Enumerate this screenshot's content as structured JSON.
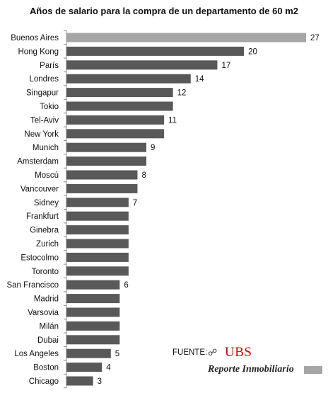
{
  "chart_data": {
    "type": "bar",
    "orientation": "horizontal",
    "title": "Años de salario para la compra de un departamento de 60 m2",
    "categories": [
      "Buenos Aires",
      "Hong Kong",
      "París",
      "Londres",
      "Singapur",
      "Tokio",
      "Tel-Aviv",
      "New York",
      "Munich",
      "Amsterdam",
      "Moscú",
      "Vancouver",
      "Sidney",
      "Frankfurt",
      "Ginebra",
      "Zurich",
      "Estocolmo",
      "Toronto",
      "San Francisco",
      "Madrid",
      "Varsovia",
      "Milán",
      "Dubai",
      "Los Angeles",
      "Boston",
      "Chicago"
    ],
    "values": [
      27,
      20,
      17,
      14,
      12,
      12,
      11,
      11,
      9,
      9,
      8,
      8,
      7,
      7,
      7,
      7,
      7,
      7,
      6,
      6,
      6,
      6,
      6,
      5,
      4,
      3
    ],
    "value_labels": [
      "27",
      "20",
      "17",
      "14",
      "12",
      "",
      "11",
      "",
      "9",
      "",
      "8",
      "",
      "7",
      "",
      "",
      "",
      "",
      "",
      "6",
      "",
      "",
      "",
      "",
      "5",
      "4",
      "3"
    ],
    "highlight_index": 0,
    "xlim": [
      0,
      28
    ],
    "grid": false,
    "legend": "none",
    "colors": {
      "bar": "#595959",
      "highlight": "#a6a6a6",
      "axis": "#8c8c8c"
    }
  },
  "source": {
    "prefix": "FUENTE:",
    "ubs_key_icon": "ubs-keys-icon",
    "ubs": "UBS",
    "reporte": "Reporte Inmobiliario",
    "ubs_color": "#d40000",
    "swatch_color": "#a6a6a6"
  }
}
